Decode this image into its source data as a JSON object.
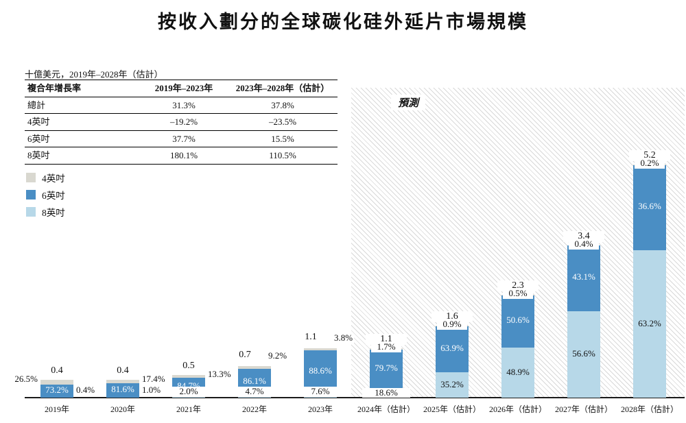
{
  "title": "按收入劃分的全球碳化硅外延片市場規模",
  "subtitle": "十億美元，2019年–2028年（估計）",
  "table": {
    "headers": [
      "複合年增長率",
      "2019年–2023年",
      "2023年–2028年（估計）"
    ],
    "rows": [
      {
        "label": "總計",
        "v1": "31.3%",
        "v2": "37.8%"
      },
      {
        "label": "4英吋",
        "v1": "–19.2%",
        "v2": "–23.5%"
      },
      {
        "label": "6英吋",
        "v1": "37.7%",
        "v2": "15.5%"
      },
      {
        "label": "8英吋",
        "v1": "180.1%",
        "v2": "110.5%"
      }
    ]
  },
  "legend": {
    "items": [
      {
        "label": "4英吋",
        "color": "#d9d8d0"
      },
      {
        "label": "6英吋",
        "color": "#4a8ec4"
      },
      {
        "label": "8英吋",
        "color": "#b7d8e8"
      }
    ]
  },
  "chart_data": {
    "type": "bar",
    "stacked": true,
    "title": "按收入劃分的全球碳化硅外延片市場規模",
    "unit": "十億美元",
    "forecast_label": "預測",
    "forecast_from_index": 5,
    "categories": [
      "2019年",
      "2020年",
      "2021年",
      "2022年",
      "2023年",
      "2024年（估計）",
      "2025年（估計）",
      "2026年（估計）",
      "2027年（估計）",
      "2028年（估計）"
    ],
    "totals": [
      0.4,
      0.4,
      0.5,
      0.7,
      1.1,
      1.1,
      1.6,
      2.3,
      3.4,
      5.2
    ],
    "series": [
      {
        "name": "8英吋",
        "color": "#b7d8e8",
        "share_pct": [
          0.4,
          1.0,
          2.0,
          4.7,
          7.6,
          18.6,
          35.2,
          48.9,
          56.6,
          63.2
        ]
      },
      {
        "name": "6英吋",
        "color": "#4a8ec4",
        "share_pct": [
          73.2,
          81.6,
          84.7,
          86.1,
          88.6,
          79.7,
          63.9,
          50.6,
          43.1,
          36.6
        ]
      },
      {
        "name": "4英吋",
        "color": "#d9d8d0",
        "share_pct": [
          26.5,
          17.4,
          13.3,
          9.2,
          3.8,
          1.7,
          0.9,
          0.5,
          0.4,
          0.2
        ]
      }
    ],
    "stack_order": "bottom-to-top",
    "ylim": [
      0,
      5.2
    ],
    "label_layout": {
      "p4_pos": [
        "left",
        "right",
        "right",
        "above-right",
        "above-right",
        "top",
        "top",
        "top",
        "top",
        "top"
      ],
      "p8_pos": [
        "side-low",
        "side-low",
        "inside-low-bg",
        "inside-low-bg",
        "inside-low-bg",
        "inside",
        "inside",
        "inside",
        "inside",
        "inside"
      ]
    }
  }
}
